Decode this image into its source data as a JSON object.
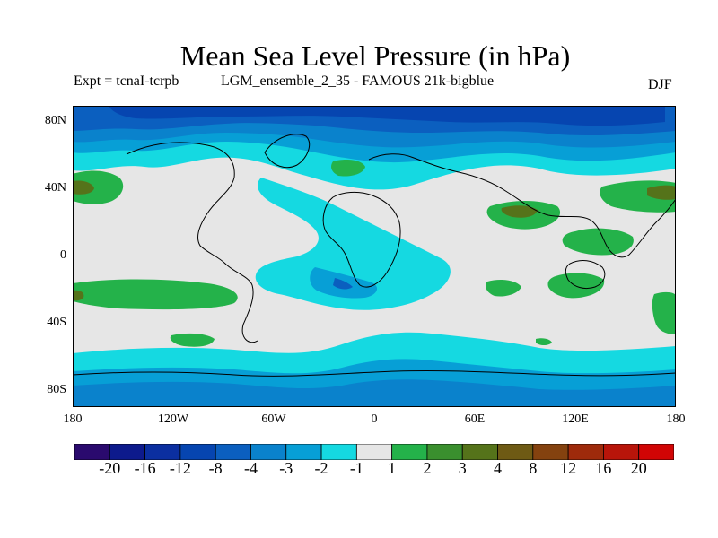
{
  "title": "Mean Sea Level Pressure (in hPa)",
  "subtitle": {
    "experiment": "Expt = tcnaI-tcrpb",
    "run": "LGM_ensemble_2_35 - FAMOUS 21k-bigblue",
    "season": "DJF"
  },
  "axes": {
    "lat_labels": [
      "80N",
      "40N",
      "0",
      "40S",
      "80S"
    ],
    "lon_labels": [
      "180",
      "120W",
      "60W",
      "0",
      "60E",
      "120E",
      "180"
    ]
  },
  "colorbar": {
    "colors": [
      "#2a0a6e",
      "#0d1a8c",
      "#0b2fa0",
      "#0645b0",
      "#0b5fbf",
      "#0a82cc",
      "#079fd6",
      "#15d9e1",
      "#e6e6e6",
      "#24b24a",
      "#3a8f2e",
      "#55731a",
      "#6e5a14",
      "#84420f",
      "#9e2a0b",
      "#b8150a",
      "#d10505"
    ],
    "labels": [
      "-20",
      "-16",
      "-12",
      "-8",
      "-4",
      "-3",
      "-2",
      "-1",
      "1",
      "2",
      "3",
      "4",
      "8",
      "12",
      "16",
      "20"
    ]
  }
}
